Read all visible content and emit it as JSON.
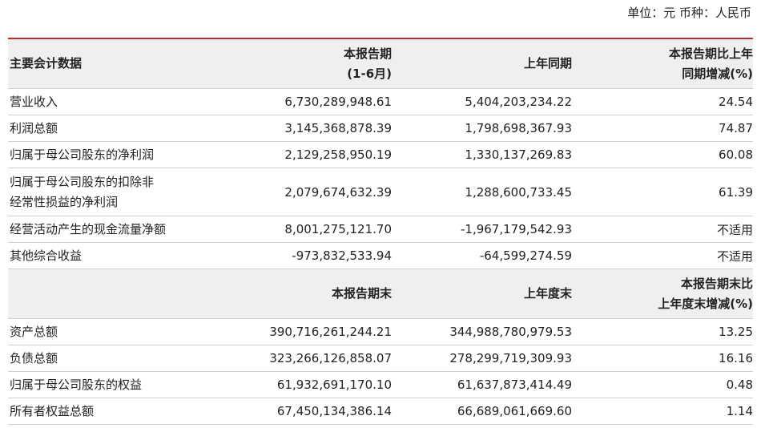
{
  "unit": "单位：元 币种：人民币",
  "sections": [
    {
      "label": [
        "主要会计数据"
      ],
      "columns": [
        [
          "本报告期",
          "(1-6月)"
        ],
        [
          "上年同期"
        ],
        [
          "本报告期比上年",
          "同期增减(%)"
        ]
      ],
      "rows": [
        {
          "label": [
            "营业收入"
          ],
          "values": [
            "6,730,289,948.61",
            "5,404,203,234.22",
            "24.54"
          ]
        },
        {
          "label": [
            "利润总额"
          ],
          "values": [
            "3,145,368,878.39",
            "1,798,698,367.93",
            "74.87"
          ]
        },
        {
          "label": [
            "归属于母公司股东的净利润"
          ],
          "values": [
            "2,129,258,950.19",
            "1,330,137,269.83",
            "60.08"
          ]
        },
        {
          "label": [
            "归属于母公司股东的扣除非",
            "经常性损益的净利润"
          ],
          "values": [
            "2,079,674,632.39",
            "1,288,600,733.45",
            "61.39"
          ]
        },
        {
          "label": [
            "经营活动产生的现金流量净额"
          ],
          "values": [
            "8,001,275,121.70",
            "-1,967,179,542.93",
            "不适用"
          ]
        },
        {
          "label": [
            "其他综合收益"
          ],
          "values": [
            "-973,832,533.94",
            "-64,599,274.59",
            "不适用"
          ]
        }
      ]
    },
    {
      "columns": [
        [
          "本报告期末"
        ],
        [
          "上年度末"
        ],
        [
          "本报告期末比",
          "上年度末增减(%)"
        ]
      ],
      "rows": [
        {
          "label": [
            "资产总额"
          ],
          "values": [
            "390,716,261,244.21",
            "344,988,780,979.53",
            "13.25"
          ]
        },
        {
          "label": [
            "负债总额"
          ],
          "values": [
            "323,266,126,858.07",
            "278,299,719,309.93",
            "16.16"
          ]
        },
        {
          "label": [
            "归属于母公司股东的权益"
          ],
          "values": [
            "61,932,691,170.10",
            "61,637,873,414.49",
            "0.48"
          ]
        },
        {
          "label": [
            "所有者权益总额"
          ],
          "values": [
            "67,450,134,386.14",
            "66,689,061,669.60",
            "1.14"
          ]
        }
      ]
    }
  ]
}
